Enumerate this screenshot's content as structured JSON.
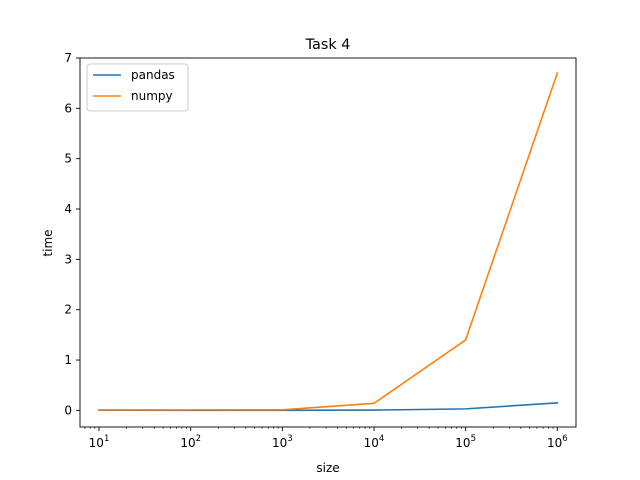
{
  "chart_data": {
    "type": "line",
    "title": "Task 4",
    "xlabel": "size",
    "ylabel": "time",
    "xscale": "log",
    "x": [
      10,
      100,
      1000,
      10000,
      100000,
      1000000
    ],
    "xticks": [
      10,
      100,
      1000,
      10000,
      100000,
      1000000
    ],
    "xtick_labels": [
      {
        "base": "10",
        "exp": "1"
      },
      {
        "base": "10",
        "exp": "2"
      },
      {
        "base": "10",
        "exp": "3"
      },
      {
        "base": "10",
        "exp": "4"
      },
      {
        "base": "10",
        "exp": "5"
      },
      {
        "base": "10",
        "exp": "6"
      }
    ],
    "xlim": [
      6.2,
      1600000
    ],
    "yticks": [
      0,
      1,
      2,
      3,
      4,
      5,
      6,
      7
    ],
    "ytick_labels": [
      "0",
      "1",
      "2",
      "3",
      "4",
      "5",
      "6",
      "7"
    ],
    "ylim": [
      -0.33,
      7.0
    ],
    "grid": false,
    "legend_position": "upper-left",
    "series": [
      {
        "name": "pandas",
        "color": "#1f77b4",
        "values": [
          0.003,
          0.002,
          0.002,
          0.006,
          0.03,
          0.15
        ]
      },
      {
        "name": "numpy",
        "color": "#ff7f0e",
        "values": [
          0.01,
          0.01,
          0.012,
          0.14,
          1.4,
          6.7
        ]
      }
    ]
  }
}
